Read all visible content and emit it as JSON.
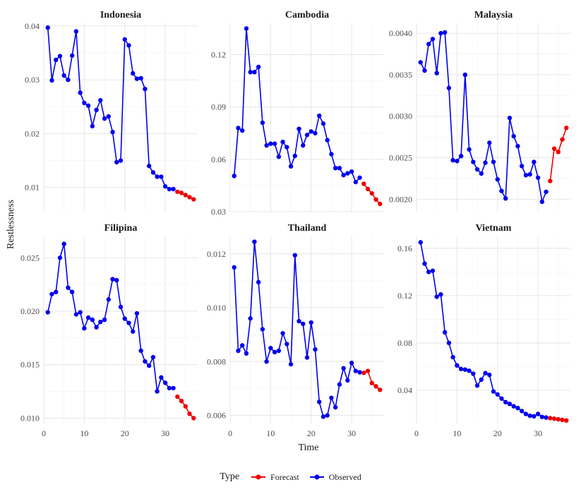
{
  "chart_data": {
    "type": "line",
    "facet_layout": "3 columns x 2 rows",
    "xlabel": "Time",
    "ylabel": "Restlessness",
    "x_ticks": [
      0,
      10,
      20,
      30
    ],
    "xlim": [
      0,
      38
    ],
    "grid": true,
    "legend": {
      "title": "Type",
      "placement": "bottom",
      "entries": [
        {
          "name": "Forecast",
          "color": "#ee0000"
        },
        {
          "name": "Observed",
          "color": "#0000ee"
        }
      ]
    },
    "panels": [
      {
        "title": "Indonesia",
        "ylim": [
          0.0055,
          0.0405
        ],
        "y_ticks": [
          0.01,
          0.02,
          0.03,
          0.04
        ],
        "y_tick_labels": [
          "0.01",
          "0.02",
          "0.03",
          "0.04"
        ],
        "series": [
          {
            "name": "Observed",
            "x": [
              1,
              2,
              3,
              4,
              5,
              6,
              7,
              8,
              9,
              10,
              11,
              12,
              13,
              14,
              15,
              16,
              17,
              18,
              19,
              20,
              21,
              22,
              23,
              24,
              25,
              26,
              27,
              28,
              29,
              30,
              31,
              32
            ],
            "values": [
              0.0397,
              0.0299,
              0.0337,
              0.0344,
              0.0308,
              0.03,
              0.0345,
              0.039,
              0.0276,
              0.0257,
              0.0252,
              0.0214,
              0.0244,
              0.0262,
              0.0228,
              0.0232,
              0.0203,
              0.0147,
              0.015,
              0.0375,
              0.0364,
              0.0312,
              0.0302,
              0.0303,
              0.0283,
              0.014,
              0.0128,
              0.012,
              0.012,
              0.0102,
              0.0097,
              0.0097
            ]
          },
          {
            "name": "Forecast",
            "x": [
              33,
              34,
              35,
              36,
              37
            ],
            "values": [
              0.0092,
              0.009,
              0.0086,
              0.0082,
              0.0078
            ]
          }
        ]
      },
      {
        "title": "Cambodia",
        "ylim": [
          0.03,
          0.138
        ],
        "y_ticks": [
          0.03,
          0.06,
          0.09,
          0.12
        ],
        "y_tick_labels": [
          "0.03",
          "0.06",
          "0.09",
          "0.12"
        ],
        "series": [
          {
            "name": "Observed",
            "x": [
              1,
              2,
              3,
              4,
              5,
              6,
              7,
              8,
              9,
              10,
              11,
              12,
              13,
              14,
              15,
              16,
              17,
              18,
              19,
              20,
              21,
              22,
              23,
              24,
              25,
              26,
              27,
              28,
              29,
              30,
              31,
              32
            ],
            "values": [
              0.0505,
              0.078,
              0.0765,
              0.135,
              0.11,
              0.11,
              0.113,
              0.081,
              0.068,
              0.069,
              0.069,
              0.0615,
              0.07,
              0.067,
              0.056,
              0.062,
              0.0775,
              0.068,
              0.074,
              0.076,
              0.075,
              0.085,
              0.0805,
              0.071,
              0.063,
              0.055,
              0.055,
              0.051,
              0.052,
              0.053,
              0.047,
              0.0495
            ]
          },
          {
            "name": "Forecast",
            "x": [
              33,
              34,
              35,
              36,
              37
            ],
            "values": [
              0.046,
              0.043,
              0.0405,
              0.037,
              0.0345
            ]
          }
        ]
      },
      {
        "title": "Malaysia",
        "ylim": [
          0.00185,
          0.00412
        ],
        "y_ticks": [
          0.002,
          0.0025,
          0.003,
          0.0035,
          0.004
        ],
        "y_tick_labels": [
          "0.0020",
          "0.0025",
          "0.0030",
          "0.0035",
          "0.0040"
        ],
        "series": [
          {
            "name": "Observed",
            "x": [
              1,
              2,
              3,
              4,
              5,
              6,
              7,
              8,
              9,
              10,
              11,
              12,
              13,
              14,
              15,
              16,
              17,
              18,
              19,
              20,
              21,
              22,
              23,
              24,
              25,
              26,
              27,
              28,
              29,
              30,
              31,
              32
            ],
            "values": [
              0.00365,
              0.00355,
              0.00387,
              0.00393,
              0.00352,
              0.004,
              0.00401,
              0.00334,
              0.00247,
              0.00246,
              0.00252,
              0.0035,
              0.0026,
              0.00245,
              0.00236,
              0.00231,
              0.00244,
              0.00268,
              0.00245,
              0.00224,
              0.0021,
              0.00201,
              0.00298,
              0.00276,
              0.00264,
              0.0024,
              0.00229,
              0.0023,
              0.00245,
              0.00226,
              0.00197,
              0.00209
            ]
          },
          {
            "name": "Forecast",
            "x": [
              33,
              34,
              35,
              36,
              37
            ],
            "values": [
              0.00222,
              0.00261,
              0.00257,
              0.00272,
              0.00286
            ]
          }
        ]
      },
      {
        "title": "Filipina",
        "ylim": [
          0.0095,
          0.027
        ],
        "y_ticks": [
          0.01,
          0.015,
          0.02,
          0.025
        ],
        "y_tick_labels": [
          "0.010",
          "0.015",
          "0.020",
          "0.025"
        ],
        "series": [
          {
            "name": "Observed",
            "x": [
              1,
              2,
              3,
              4,
              5,
              6,
              7,
              8,
              9,
              10,
              11,
              12,
              13,
              14,
              15,
              16,
              17,
              18,
              19,
              20,
              21,
              22,
              23,
              24,
              25,
              26,
              27,
              28,
              29,
              30,
              31,
              32
            ],
            "values": [
              0.0199,
              0.0216,
              0.0218,
              0.025,
              0.0263,
              0.0222,
              0.0218,
              0.0197,
              0.0199,
              0.0184,
              0.0194,
              0.0192,
              0.0185,
              0.019,
              0.0192,
              0.0211,
              0.023,
              0.0229,
              0.0204,
              0.0193,
              0.0189,
              0.0181,
              0.0198,
              0.0163,
              0.0153,
              0.0149,
              0.0157,
              0.0125,
              0.0138,
              0.0133,
              0.0128,
              0.0128
            ]
          },
          {
            "name": "Forecast",
            "x": [
              33,
              34,
              35,
              36,
              37
            ],
            "values": [
              0.012,
              0.0116,
              0.0111,
              0.0104,
              0.01
            ]
          }
        ]
      },
      {
        "title": "Thailand",
        "ylim": [
          0.0057,
          0.01265
        ],
        "y_ticks": [
          0.006,
          0.008,
          0.01,
          0.012
        ],
        "y_tick_labels": [
          "0.006",
          "0.008",
          "0.010",
          "0.012"
        ],
        "series": [
          {
            "name": "Observed",
            "x": [
              1,
              2,
              3,
              4,
              5,
              6,
              7,
              8,
              9,
              10,
              11,
              12,
              13,
              14,
              15,
              16,
              17,
              18,
              19,
              20,
              21,
              22,
              23,
              24,
              25,
              26,
              27,
              28,
              29,
              30,
              31,
              32
            ],
            "values": [
              0.0115,
              0.0084,
              0.0086,
              0.0083,
              0.0096,
              0.01245,
              0.01095,
              0.0092,
              0.008,
              0.0085,
              0.00835,
              0.0084,
              0.00905,
              0.00865,
              0.0079,
              0.01195,
              0.0095,
              0.0094,
              0.00815,
              0.00945,
              0.00845,
              0.0065,
              0.00595,
              0.006,
              0.00665,
              0.0063,
              0.00715,
              0.00775,
              0.0073,
              0.00795,
              0.00765,
              0.0076
            ]
          },
          {
            "name": "Forecast",
            "x": [
              33,
              34,
              35,
              36,
              37
            ],
            "values": [
              0.00758,
              0.00765,
              0.0072,
              0.00708,
              0.00695
            ]
          }
        ]
      },
      {
        "title": "Vietnam",
        "ylim": [
          0.012,
          0.17
        ],
        "y_ticks": [
          0.04,
          0.08,
          0.12,
          0.16
        ],
        "y_tick_labels": [
          "0.04",
          "0.08",
          "0.12",
          "0.16"
        ],
        "series": [
          {
            "name": "Observed",
            "x": [
              1,
              2,
              3,
              4,
              5,
              6,
              7,
              8,
              9,
              10,
              11,
              12,
              13,
              14,
              15,
              16,
              17,
              18,
              19,
              20,
              21,
              22,
              23,
              24,
              25,
              26,
              27,
              28,
              29,
              30,
              31,
              32
            ],
            "values": [
              0.165,
              0.147,
              0.14,
              0.141,
              0.119,
              0.121,
              0.089,
              0.08,
              0.068,
              0.061,
              0.058,
              0.0575,
              0.0565,
              0.054,
              0.044,
              0.049,
              0.0545,
              0.053,
              0.039,
              0.0365,
              0.033,
              0.03,
              0.0285,
              0.0265,
              0.025,
              0.0225,
              0.02,
              0.0185,
              0.018,
              0.02,
              0.0175,
              0.017
            ]
          },
          {
            "name": "Forecast",
            "x": [
              33,
              34,
              35,
              36,
              37
            ],
            "values": [
              0.0165,
              0.016,
              0.0155,
              0.015,
              0.0145
            ]
          }
        ]
      }
    ]
  }
}
